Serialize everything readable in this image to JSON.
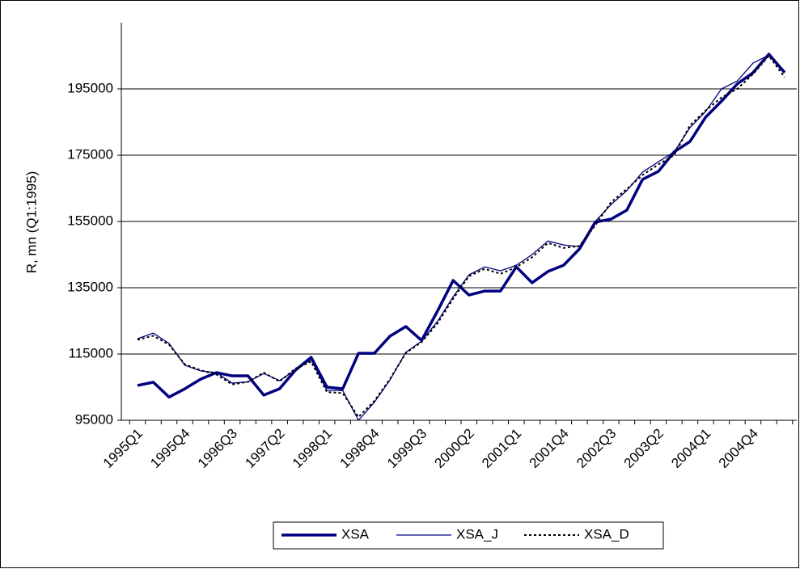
{
  "chart_data": {
    "type": "line",
    "ylabel": "R, mn (Q1:1995)",
    "categories": [
      "1995Q1",
      null,
      null,
      "1995Q4",
      null,
      null,
      "1996Q3",
      null,
      null,
      "1997Q2",
      null,
      null,
      "1998Q1",
      null,
      null,
      "1998Q4",
      null,
      null,
      "1999Q3",
      null,
      null,
      "2000Q2",
      null,
      null,
      "2001Q1",
      null,
      null,
      "2001Q4",
      null,
      null,
      "2002Q3",
      null,
      null,
      "2003Q2",
      null,
      null,
      "2004Q1",
      null,
      null,
      "2004Q4",
      null,
      null
    ],
    "ylim": [
      95000,
      215000
    ],
    "yticks": [
      95000,
      115000,
      135000,
      155000,
      175000,
      195000
    ],
    "grid": true,
    "legend": "bottom",
    "series": [
      {
        "name": "XSA",
        "color": "#000080",
        "linestyle": "thick",
        "values": [
          105500,
          106500,
          102000,
          104500,
          107400,
          109400,
          108400,
          108400,
          102600,
          104500,
          110100,
          114000,
          105000,
          104500,
          115200,
          115200,
          120400,
          123300,
          119100,
          127900,
          137200,
          132800,
          134000,
          134000,
          141300,
          136500,
          139900,
          141800,
          146700,
          154800,
          155700,
          158400,
          167700,
          170100,
          176000,
          179100,
          186500,
          191300,
          196500,
          199900,
          205500,
          199900
        ]
      },
      {
        "name": "XSA_J",
        "color": "#000080",
        "linestyle": "thin",
        "values": [
          119600,
          121300,
          118200,
          111600,
          109900,
          109400,
          106200,
          106600,
          109100,
          107000,
          110100,
          113300,
          104000,
          104000,
          95000,
          100400,
          107200,
          115500,
          118900,
          124800,
          132300,
          138900,
          141300,
          140100,
          141800,
          145000,
          149100,
          147900,
          147400,
          155000,
          160100,
          164300,
          169900,
          173000,
          176000,
          183300,
          188200,
          195000,
          197400,
          202800,
          205200,
          200400
        ]
      },
      {
        "name": "XSA_D",
        "color": "#000000",
        "linestyle": "dotted",
        "values": [
          119300,
          120500,
          117800,
          111900,
          110100,
          108800,
          105800,
          106600,
          109400,
          106700,
          110600,
          112700,
          103500,
          103200,
          96000,
          100800,
          107500,
          115300,
          118600,
          124200,
          131700,
          138500,
          140700,
          139200,
          141200,
          144200,
          148500,
          147000,
          147600,
          153800,
          160800,
          164800,
          169000,
          172200,
          175000,
          184000,
          188500,
          192400,
          195000,
          199500,
          205000,
          198500
        ]
      }
    ]
  }
}
